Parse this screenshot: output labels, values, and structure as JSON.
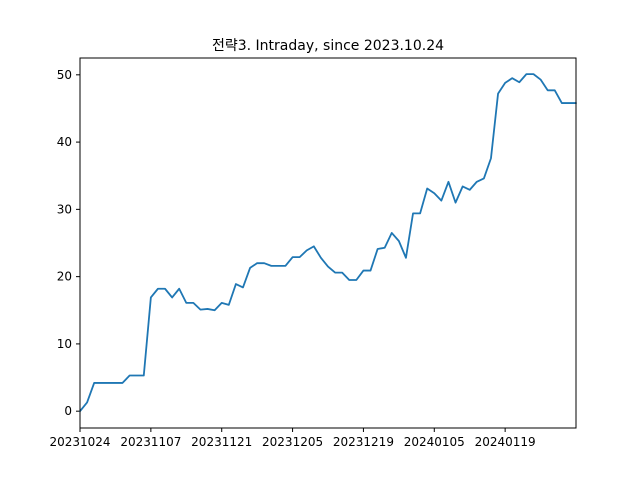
{
  "chart_data": {
    "type": "line",
    "title": "전략3. Intraday, since 2023.10.24",
    "xlabel": "",
    "ylabel": "",
    "ylim": [
      -2.5,
      52.5
    ],
    "yticks": [
      0,
      10,
      20,
      30,
      40,
      50
    ],
    "xtick_labels": [
      "20231024",
      "20231107",
      "20231121",
      "20231205",
      "20231219",
      "20240105",
      "20240119"
    ],
    "grid": false,
    "line_color": "#1f77b4",
    "series": [
      {
        "values": [
          0.0,
          1.3,
          4.2,
          4.2,
          4.2,
          4.2,
          4.2,
          5.3,
          5.3,
          5.3,
          16.9,
          18.2,
          18.2,
          16.9,
          18.2,
          16.1,
          16.1,
          15.1,
          15.2,
          15.0,
          16.1,
          15.8,
          18.9,
          18.4,
          21.3,
          22.0,
          22.0,
          21.6,
          21.6,
          21.6,
          22.9,
          22.9,
          23.9,
          24.5,
          22.8,
          21.5,
          20.6,
          20.6,
          19.5,
          19.5,
          20.9,
          20.9,
          24.1,
          24.3,
          26.5,
          25.3,
          22.8,
          29.4,
          29.4,
          33.1,
          32.4,
          31.3,
          34.1,
          31.0,
          33.4,
          32.9,
          34.1,
          34.6,
          37.6,
          47.2,
          48.8,
          49.5,
          48.9,
          50.1,
          50.1,
          49.3,
          47.7,
          47.7,
          45.8,
          45.8,
          45.8
        ]
      }
    ]
  }
}
